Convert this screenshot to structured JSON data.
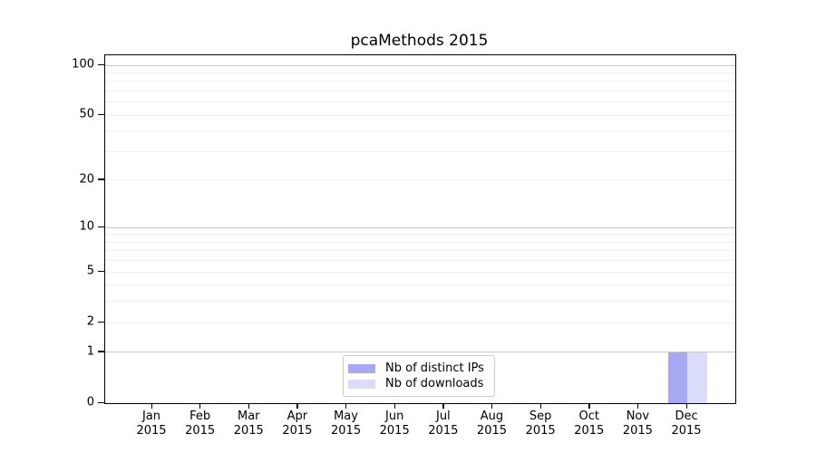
{
  "chart_data": {
    "type": "bar",
    "title": "pcaMethods 2015",
    "categories": [
      "Jan",
      "Feb",
      "Mar",
      "Apr",
      "May",
      "Jun",
      "Jul",
      "Aug",
      "Sep",
      "Oct",
      "Nov",
      "Dec"
    ],
    "year_label": "2015",
    "series": [
      {
        "name": "Nb of distinct IPs",
        "color": "#a8a8f2",
        "values": [
          0,
          0,
          0,
          0,
          0,
          0,
          0,
          0,
          0,
          0,
          0,
          1
        ]
      },
      {
        "name": "Nb of downloads",
        "color": "#dbdbfa",
        "values": [
          0,
          0,
          0,
          0,
          0,
          0,
          0,
          0,
          0,
          0,
          0,
          1
        ]
      }
    ],
    "yscale": "log1p",
    "yticks": [
      0,
      1,
      2,
      5,
      10,
      20,
      50,
      100
    ],
    "ylim": [
      0,
      115
    ],
    "grid": "horizontal",
    "grid_major_values": [
      1,
      10,
      100
    ],
    "grid_minor_values": [
      2,
      3,
      4,
      5,
      6,
      7,
      8,
      9,
      20,
      30,
      40,
      50,
      60,
      70,
      80,
      90
    ],
    "legend_position": "bottom-center",
    "xlabel": "",
    "ylabel": ""
  }
}
